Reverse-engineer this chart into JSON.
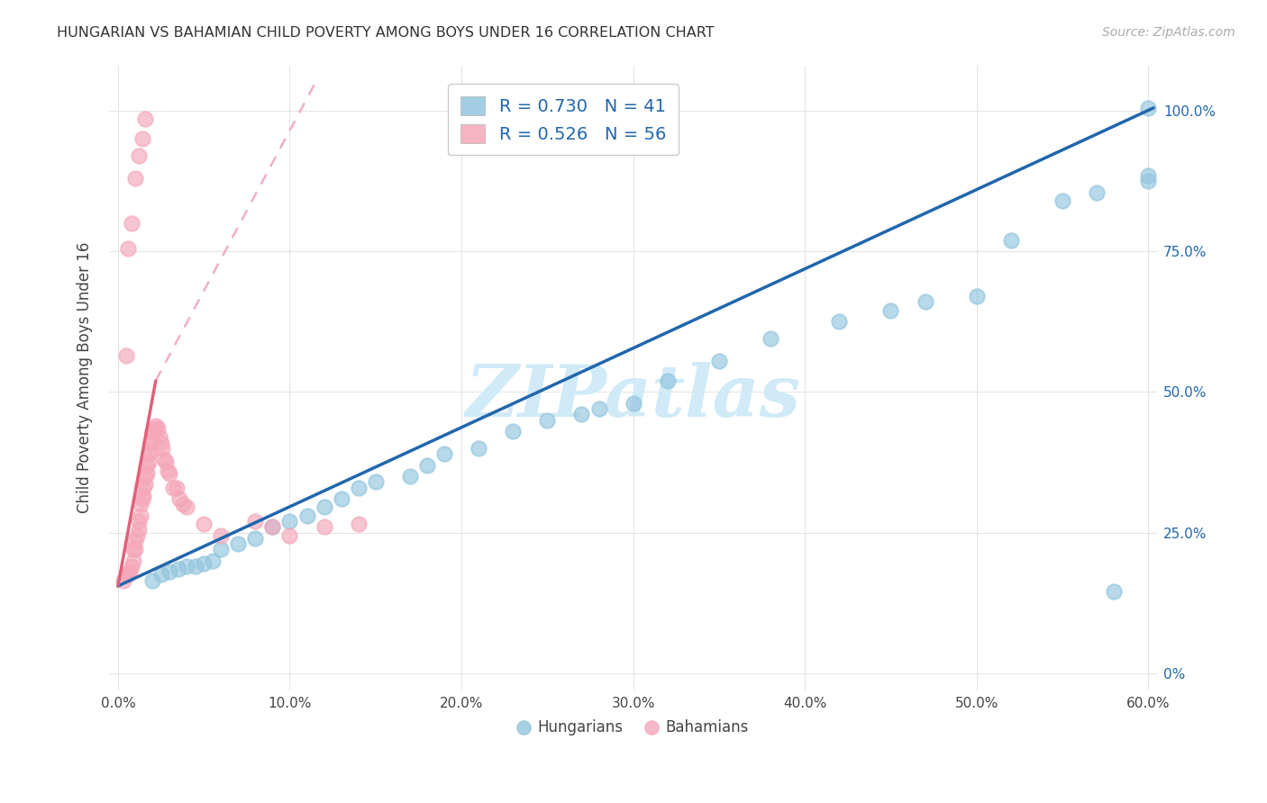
{
  "title": "HUNGARIAN VS BAHAMIAN CHILD POVERTY AMONG BOYS UNDER 16 CORRELATION CHART",
  "source": "Source: ZipAtlas.com",
  "ylabel": "Child Poverty Among Boys Under 16",
  "hungarian_R": 0.73,
  "hungarian_N": 41,
  "bahamian_R": 0.526,
  "bahamian_N": 56,
  "hungarian_color": "#92c5de",
  "bahamian_color": "#f4a7b9",
  "hungarian_line_color": "#2166ac",
  "bahamian_line_color": "#d6604d",
  "bahamian_line_dashed_color": "#f4c2ce",
  "watermark": "ZIPatlas",
  "watermark_color": "#d0eaf7",
  "xlim": [
    -0.005,
    0.605
  ],
  "ylim": [
    -0.03,
    1.08
  ],
  "x_ticks": [
    0.0,
    0.1,
    0.2,
    0.3,
    0.4,
    0.5,
    0.6
  ],
  "x_labels": [
    "0.0%",
    "10.0%",
    "20.0%",
    "30.0%",
    "40.0%",
    "50.0%",
    "60.0%"
  ],
  "y_ticks": [
    0.0,
    0.25,
    0.5,
    0.75,
    1.0
  ],
  "y_labels_right": [
    "0%",
    "25.0%",
    "50.0%",
    "75.0%",
    "100.0%"
  ],
  "hun_x": [
    0.02,
    0.025,
    0.03,
    0.035,
    0.04,
    0.045,
    0.05,
    0.055,
    0.06,
    0.07,
    0.08,
    0.09,
    0.1,
    0.11,
    0.12,
    0.13,
    0.14,
    0.15,
    0.17,
    0.18,
    0.19,
    0.21,
    0.23,
    0.25,
    0.27,
    0.28,
    0.3,
    0.32,
    0.35,
    0.38,
    0.42,
    0.45,
    0.47,
    0.5,
    0.52,
    0.55,
    0.57,
    0.58,
    0.6,
    0.6,
    0.6
  ],
  "hun_y": [
    0.165,
    0.175,
    0.18,
    0.185,
    0.19,
    0.19,
    0.195,
    0.2,
    0.22,
    0.23,
    0.24,
    0.26,
    0.27,
    0.28,
    0.295,
    0.31,
    0.33,
    0.34,
    0.35,
    0.37,
    0.39,
    0.4,
    0.43,
    0.45,
    0.46,
    0.47,
    0.48,
    0.52,
    0.555,
    0.595,
    0.625,
    0.645,
    0.66,
    0.67,
    0.77,
    0.84,
    0.855,
    0.145,
    0.875,
    0.885,
    1.005
  ],
  "bah_x": [
    0.003,
    0.005,
    0.006,
    0.007,
    0.008,
    0.009,
    0.009,
    0.01,
    0.01,
    0.011,
    0.012,
    0.012,
    0.013,
    0.013,
    0.014,
    0.015,
    0.015,
    0.016,
    0.016,
    0.017,
    0.017,
    0.018,
    0.018,
    0.019,
    0.019,
    0.02,
    0.02,
    0.021,
    0.022,
    0.023,
    0.024,
    0.025,
    0.026,
    0.027,
    0.028,
    0.029,
    0.03,
    0.032,
    0.034,
    0.036,
    0.038,
    0.04,
    0.05,
    0.06,
    0.08,
    0.09,
    0.1,
    0.12,
    0.14,
    0.005,
    0.006,
    0.008,
    0.01,
    0.012,
    0.014,
    0.016
  ],
  "bah_y": [
    0.165,
    0.175,
    0.175,
    0.18,
    0.19,
    0.2,
    0.22,
    0.22,
    0.235,
    0.245,
    0.255,
    0.27,
    0.28,
    0.3,
    0.31,
    0.315,
    0.33,
    0.335,
    0.35,
    0.355,
    0.37,
    0.375,
    0.39,
    0.395,
    0.41,
    0.415,
    0.43,
    0.435,
    0.44,
    0.435,
    0.42,
    0.41,
    0.4,
    0.38,
    0.375,
    0.36,
    0.355,
    0.33,
    0.33,
    0.31,
    0.3,
    0.295,
    0.265,
    0.245,
    0.27,
    0.26,
    0.245,
    0.26,
    0.265,
    0.565,
    0.755,
    0.8,
    0.88,
    0.92,
    0.95,
    0.985
  ]
}
